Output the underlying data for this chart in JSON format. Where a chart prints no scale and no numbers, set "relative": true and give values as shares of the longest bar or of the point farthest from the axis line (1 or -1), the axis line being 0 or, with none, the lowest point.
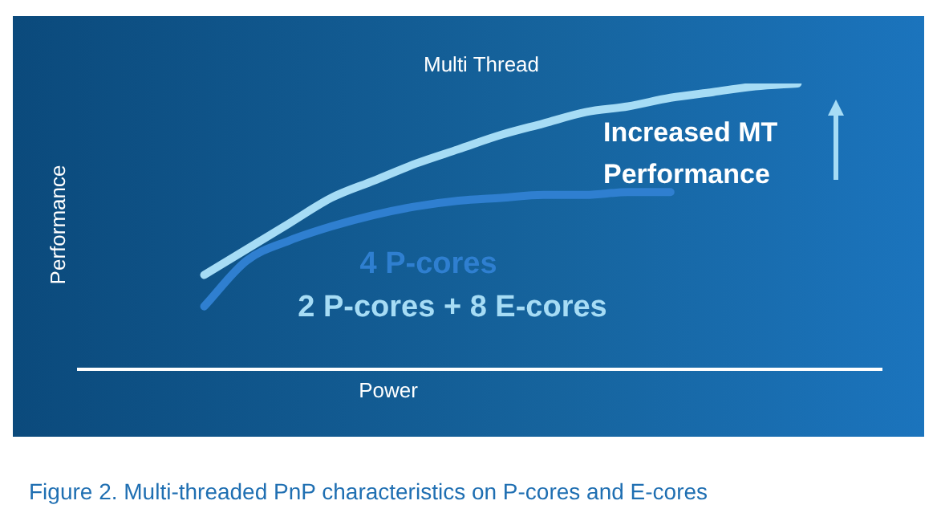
{
  "chart_data": {
    "type": "line",
    "title": "Multi Thread",
    "xlabel": "Power",
    "ylabel": "Performance",
    "relative": true,
    "legend": false,
    "marker": "none",
    "line_style": "solid",
    "categories": [
      null,
      null,
      null,
      null,
      null,
      null,
      null,
      null,
      null,
      null,
      null,
      null,
      null,
      null,
      null,
      null,
      null,
      null,
      null,
      null
    ],
    "series": [
      {
        "name": "2 P-cores + 8 E-cores",
        "color": "#a6dcf5",
        "values": [
          null,
          null,
          null,
          0.33,
          0.42,
          0.51,
          0.6,
          0.66,
          0.72,
          0.77,
          0.82,
          0.86,
          0.9,
          0.92,
          0.95,
          0.97,
          0.99,
          1,
          null,
          null
        ]
      },
      {
        "name": "4 P-cores",
        "color": "#2f7fd0",
        "values": [
          null,
          null,
          null,
          0.22,
          0.38,
          0.45,
          0.5,
          0.54,
          0.57,
          0.59,
          0.6,
          0.61,
          0.61,
          0.62,
          0.62,
          null,
          null,
          null,
          null,
          null
        ]
      }
    ],
    "annotations": [
      "Increased MT Performance",
      "Figure 2. Multi-threaded PnP characteristics on P-cores and E-cores"
    ]
  }
}
